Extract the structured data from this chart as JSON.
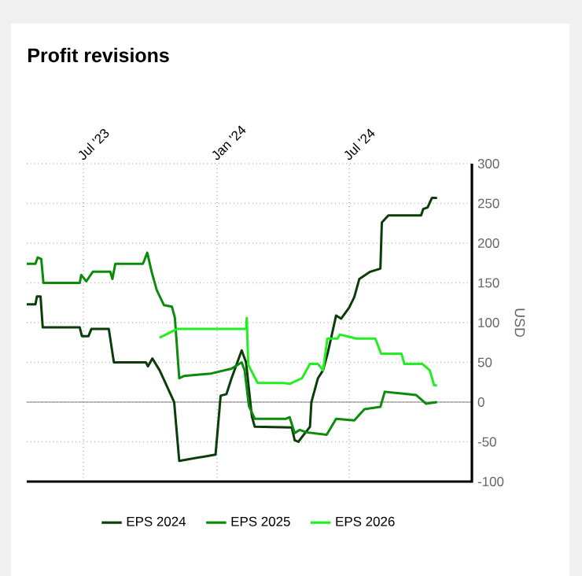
{
  "chart_data": {
    "type": "line",
    "title": "Profit revisions",
    "ylabel": "USD",
    "xlim": [
      "2023-04-14",
      "2024-12-17"
    ],
    "ylim": [
      -100,
      300
    ],
    "xticks": [
      {
        "value": "2023-07-01",
        "label": "Jul '23"
      },
      {
        "value": "2024-01-01",
        "label": "Jan '24"
      },
      {
        "value": "2024-07-01",
        "label": "Jul '24"
      }
    ],
    "yticks": [
      -100,
      -50,
      0,
      50,
      100,
      150,
      200,
      250,
      300
    ],
    "grid": true,
    "legend": "bottom",
    "marker": "none",
    "line_style": "solid",
    "ref_lines": [
      {
        "axis": "y",
        "value": 0,
        "color": "#808080"
      }
    ],
    "series": [
      {
        "name": "EPS 2024",
        "color": "#0b3d0b",
        "x": [
          "2023-04-14",
          "2023-04-26",
          "2023-04-28",
          "2023-05-03",
          "2023-05-06",
          "2023-06-26",
          "2023-06-29",
          "2023-07-08",
          "2023-07-12",
          "2023-08-05",
          "2023-08-12",
          "2023-09-25",
          "2023-09-28",
          "2023-10-04",
          "2023-10-14",
          "2023-10-20",
          "2023-10-27",
          "2023-11-03",
          "2023-11-10",
          "2023-12-30",
          "2024-01-06",
          "2024-01-14",
          "2024-01-21",
          "2024-02-04",
          "2024-02-10",
          "2024-02-18",
          "2024-02-22",
          "2024-04-13",
          "2024-04-17",
          "2024-04-22",
          "2024-04-27",
          "2024-05-08",
          "2024-05-10",
          "2024-05-19",
          "2024-05-26",
          "2024-06-01",
          "2024-06-06",
          "2024-06-13",
          "2024-06-20",
          "2024-07-01",
          "2024-07-08",
          "2024-07-15",
          "2024-07-30",
          "2024-08-13",
          "2024-08-15",
          "2024-08-24",
          "2024-10-08",
          "2024-10-11",
          "2024-10-17",
          "2024-10-23",
          "2024-10-30"
        ],
        "values": [
          123,
          123,
          133,
          133,
          94,
          94,
          83,
          83,
          92,
          92,
          50,
          50,
          45,
          55,
          40,
          28,
          14,
          0,
          -74,
          -66,
          8,
          10,
          30,
          65,
          50,
          -18,
          -31,
          -32,
          -48,
          -50,
          -44,
          -31,
          0,
          30,
          40,
          60,
          80,
          109,
          105,
          119,
          132,
          155,
          164,
          168,
          226,
          235,
          235,
          243,
          245,
          257,
          257
        ]
      },
      {
        "name": "EPS 2025",
        "color": "#0a8c0a",
        "x": [
          "2023-04-14",
          "2023-04-26",
          "2023-04-29",
          "2023-05-04",
          "2023-05-07",
          "2023-06-26",
          "2023-06-28",
          "2023-07-05",
          "2023-07-14",
          "2023-08-07",
          "2023-08-10",
          "2023-08-14",
          "2023-09-21",
          "2023-09-27",
          "2023-10-03",
          "2023-10-10",
          "2023-10-20",
          "2023-10-31",
          "2023-11-04",
          "2023-11-10",
          "2023-11-17",
          "2023-12-24",
          "2024-01-21",
          "2024-02-04",
          "2024-02-08",
          "2024-02-14",
          "2024-02-22",
          "2024-04-05",
          "2024-04-10",
          "2024-04-17",
          "2024-04-24",
          "2024-05-03",
          "2024-05-31",
          "2024-06-13",
          "2024-07-08",
          "2024-07-22",
          "2024-08-13",
          "2024-08-19",
          "2024-10-01",
          "2024-10-15",
          "2024-10-30"
        ],
        "values": [
          174,
          174,
          182,
          180,
          150,
          150,
          160,
          152,
          164,
          164,
          155,
          174,
          174,
          188,
          164,
          141,
          122,
          120,
          106,
          30,
          33,
          36,
          42,
          50,
          40,
          -5,
          -21,
          -21,
          -19,
          -39,
          -35,
          -38,
          -41,
          -21,
          -23,
          -9,
          -6,
          13,
          9,
          -2,
          0
        ]
      },
      {
        "name": "EPS 2026",
        "color": "#22ee22",
        "x": [
          "2023-10-14",
          "2023-11-07",
          "2024-02-10",
          "2024-02-11",
          "2024-02-13",
          "2024-02-26",
          "2024-04-02",
          "2024-04-10",
          "2024-04-27",
          "2024-05-08",
          "2024-05-19",
          "2024-05-26",
          "2024-06-01",
          "2024-06-15",
          "2024-06-18",
          "2024-07-11",
          "2024-08-06",
          "2024-08-14",
          "2024-09-11",
          "2024-09-15",
          "2024-10-10",
          "2024-10-20",
          "2024-10-26",
          "2024-10-30"
        ],
        "values": [
          81,
          92,
          92,
          106,
          47,
          24,
          24,
          23,
          30,
          48,
          48,
          40,
          80,
          80,
          85,
          80,
          80,
          61,
          61,
          48,
          48,
          40,
          21,
          21
        ]
      }
    ]
  }
}
